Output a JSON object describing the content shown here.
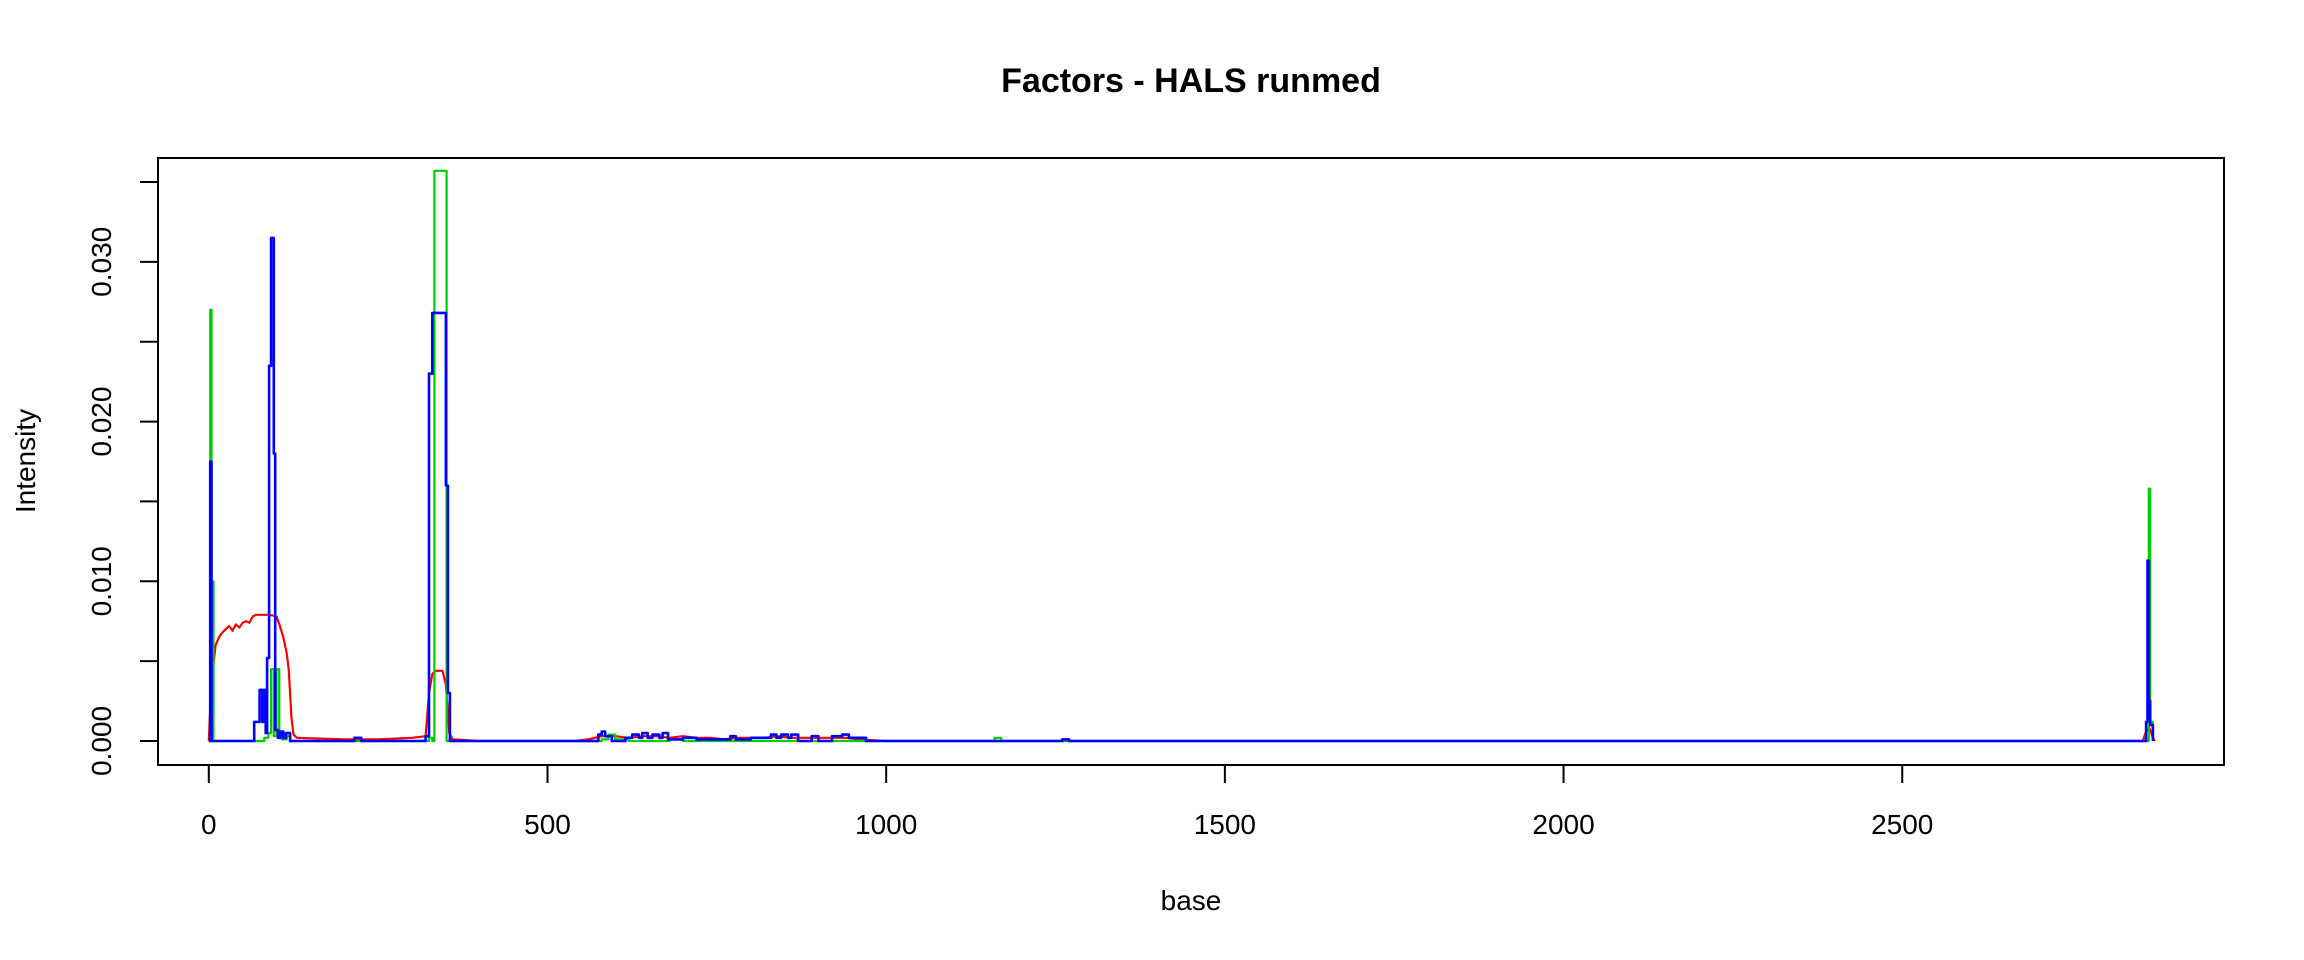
{
  "chart_data": {
    "type": "line",
    "title": "Factors - HALS runmed",
    "xlabel": "base",
    "ylabel": "Intensity",
    "xlim": [
      -75,
      2975
    ],
    "ylim": [
      -0.0015,
      0.0365
    ],
    "x_ticks": [
      0,
      500,
      1000,
      1500,
      2000,
      2500
    ],
    "x_tick_labels": [
      "0",
      "500",
      "1000",
      "1500",
      "2000",
      "2500"
    ],
    "y_ticks": [
      0.0,
      0.005,
      0.01,
      0.015,
      0.02,
      0.025,
      0.03,
      0.035
    ],
    "y_tick_labels": [
      "0.000",
      "",
      "0.010",
      "",
      "0.020",
      "",
      "0.030",
      ""
    ],
    "grid": false,
    "legend": "none",
    "series": [
      {
        "color": "#ff0000",
        "step": false,
        "points": [
          [
            0,
            0.0
          ],
          [
            3,
            0.003
          ],
          [
            6,
            0.0045
          ],
          [
            10,
            0.006
          ],
          [
            15,
            0.0065
          ],
          [
            20,
            0.0068
          ],
          [
            25,
            0.007
          ],
          [
            30,
            0.0072
          ],
          [
            35,
            0.0069
          ],
          [
            40,
            0.0073
          ],
          [
            45,
            0.0071
          ],
          [
            50,
            0.0074
          ],
          [
            55,
            0.0075
          ],
          [
            60,
            0.0074
          ],
          [
            65,
            0.0078
          ],
          [
            70,
            0.0079
          ],
          [
            80,
            0.0079
          ],
          [
            90,
            0.0079
          ],
          [
            100,
            0.0078
          ],
          [
            105,
            0.0072
          ],
          [
            110,
            0.0065
          ],
          [
            115,
            0.0055
          ],
          [
            118,
            0.0045
          ],
          [
            120,
            0.003
          ],
          [
            122,
            0.0015
          ],
          [
            125,
            0.0004
          ],
          [
            130,
            0.0002
          ],
          [
            200,
            0.0001
          ],
          [
            250,
            0.0001
          ],
          [
            300,
            0.0002
          ],
          [
            320,
            0.0003
          ],
          [
            325,
            0.003
          ],
          [
            330,
            0.0042
          ],
          [
            335,
            0.0044
          ],
          [
            345,
            0.0044
          ],
          [
            350,
            0.0035
          ],
          [
            355,
            0.0005
          ],
          [
            360,
            0.0001
          ],
          [
            400,
            0.0
          ],
          [
            540,
            0.0
          ],
          [
            560,
            0.0001
          ],
          [
            580,
            0.0003
          ],
          [
            600,
            0.0003
          ],
          [
            620,
            0.0002
          ],
          [
            640,
            0.0003
          ],
          [
            660,
            0.0003
          ],
          [
            680,
            0.0002
          ],
          [
            700,
            0.0003
          ],
          [
            720,
            0.0002
          ],
          [
            740,
            0.0002
          ],
          [
            760,
            0.0001
          ],
          [
            780,
            0.0002
          ],
          [
            800,
            0.0002
          ],
          [
            820,
            0.0002
          ],
          [
            840,
            0.0003
          ],
          [
            860,
            0.0002
          ],
          [
            880,
            0.0002
          ],
          [
            900,
            0.0002
          ],
          [
            920,
            0.0002
          ],
          [
            940,
            0.0002
          ],
          [
            960,
            0.0001
          ],
          [
            1000,
            0.0
          ],
          [
            2855,
            0.0
          ],
          [
            2860,
            0.0006
          ],
          [
            2865,
            0.0008
          ],
          [
            2870,
            0.0002
          ],
          [
            2873,
            0.0
          ]
        ]
      },
      {
        "color": "#00cd00",
        "step": true,
        "points": [
          [
            0,
            0.0
          ],
          [
            2,
            0.027
          ],
          [
            4,
            0.01
          ],
          [
            7,
            0.0
          ],
          [
            80,
            0.0
          ],
          [
            82,
            0.0002
          ],
          [
            88,
            0.0005
          ],
          [
            92,
            0.0045
          ],
          [
            96,
            0.0003
          ],
          [
            100,
            0.0045
          ],
          [
            104,
            0.0003
          ],
          [
            108,
            0.0001
          ],
          [
            115,
            0.0003
          ],
          [
            120,
            0.0
          ],
          [
            320,
            0.0
          ],
          [
            325,
            0.0002
          ],
          [
            330,
            0.0
          ],
          [
            333,
            0.0357
          ],
          [
            348,
            0.0357
          ],
          [
            351,
            0.0
          ],
          [
            400,
            0.0
          ],
          [
            580,
            0.0001
          ],
          [
            590,
            0.0004
          ],
          [
            600,
            0.0001
          ],
          [
            620,
            0.0
          ],
          [
            680,
            0.0001
          ],
          [
            700,
            0.0
          ],
          [
            1160,
            0.0002
          ],
          [
            1170,
            0.0
          ],
          [
            2862,
            0.0
          ],
          [
            2864,
            0.0158
          ],
          [
            2866,
            0.0012
          ],
          [
            2870,
            0.0
          ]
        ]
      },
      {
        "color": "#0000ff",
        "step": true,
        "points": [
          [
            0,
            0.0
          ],
          [
            2,
            0.0175
          ],
          [
            4,
            0.0
          ],
          [
            7,
            0.0
          ],
          [
            65,
            0.0
          ],
          [
            67,
            0.0012
          ],
          [
            73,
            0.0012
          ],
          [
            75,
            0.0032
          ],
          [
            79,
            0.0012
          ],
          [
            81,
            0.0032
          ],
          [
            84,
            0.0005
          ],
          [
            86,
            0.0052
          ],
          [
            89,
            0.0235
          ],
          [
            92,
            0.0315
          ],
          [
            96,
            0.018
          ],
          [
            98,
            0.0007
          ],
          [
            102,
            0.0002
          ],
          [
            106,
            0.0006
          ],
          [
            110,
            0.0002
          ],
          [
            114,
            0.0005
          ],
          [
            120,
            0.0
          ],
          [
            200,
            0.0
          ],
          [
            215,
            0.0002
          ],
          [
            225,
            0.0
          ],
          [
            300,
            0.0
          ],
          [
            320,
            0.0003
          ],
          [
            325,
            0.023
          ],
          [
            330,
            0.0268
          ],
          [
            345,
            0.0268
          ],
          [
            350,
            0.016
          ],
          [
            353,
            0.003
          ],
          [
            356,
            0.0
          ],
          [
            400,
            0.0
          ],
          [
            560,
            0.0
          ],
          [
            575,
            0.0004
          ],
          [
            580,
            0.0006
          ],
          [
            585,
            0.0003
          ],
          [
            595,
            0.0
          ],
          [
            615,
            0.0002
          ],
          [
            625,
            0.0004
          ],
          [
            635,
            0.0002
          ],
          [
            640,
            0.0005
          ],
          [
            648,
            0.0002
          ],
          [
            655,
            0.0004
          ],
          [
            665,
            0.0002
          ],
          [
            670,
            0.0005
          ],
          [
            678,
            0.0001
          ],
          [
            700,
            0.0002
          ],
          [
            720,
            0.0001
          ],
          [
            760,
            0.0001
          ],
          [
            770,
            0.0003
          ],
          [
            778,
            0.0001
          ],
          [
            800,
            0.0002
          ],
          [
            820,
            0.0002
          ],
          [
            830,
            0.0004
          ],
          [
            838,
            0.0002
          ],
          [
            845,
            0.0004
          ],
          [
            855,
            0.0002
          ],
          [
            860,
            0.0004
          ],
          [
            870,
            0.0
          ],
          [
            890,
            0.0003
          ],
          [
            900,
            0.0
          ],
          [
            920,
            0.0003
          ],
          [
            935,
            0.0004
          ],
          [
            945,
            0.0002
          ],
          [
            960,
            0.0002
          ],
          [
            970,
            0.0
          ],
          [
            1250,
            0.0
          ],
          [
            1260,
            0.0001
          ],
          [
            1270,
            0.0
          ],
          [
            2855,
            0.0
          ],
          [
            2860,
            0.0012
          ],
          [
            2862,
            0.0113
          ],
          [
            2864,
            0.0025
          ],
          [
            2866,
            0.001
          ],
          [
            2870,
            0.0
          ]
        ]
      }
    ]
  }
}
